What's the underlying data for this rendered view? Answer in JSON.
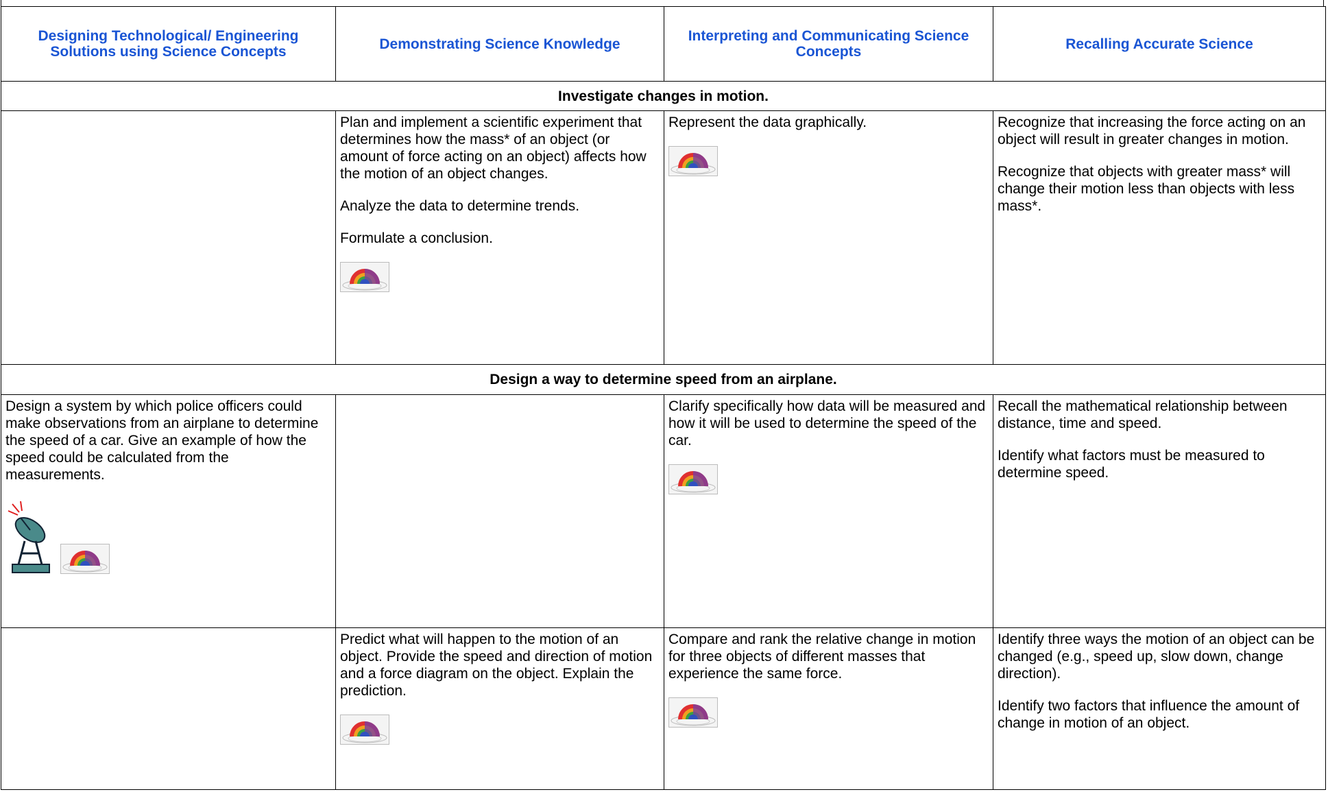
{
  "table": {
    "headers": [
      "Designing Technological/ Engineering Solutions using Science Concepts",
      "Demonstrating Science Knowledge",
      "Interpreting and Communicating Science Concepts",
      "Recalling Accurate Science"
    ],
    "sections": [
      {
        "title": "Investigate changes in motion.",
        "rows": [
          [
            [],
            [
              "Plan and implement a scientific experiment that determines how the mass* of an object (or amount of force acting on an object) affects how the motion of an object changes.",
              "Analyze the data to determine trends.",
              "Formulate a conclusion."
            ],
            [
              "Represent the data graphically."
            ],
            [
              "Recognize that increasing the force acting on an object will result in greater changes in motion.",
              "Recognize that objects with greater mass* will change their motion less than objects with less mass*."
            ]
          ]
        ]
      },
      {
        "title": "Design a way to determine speed from an airplane.",
        "rows": [
          [
            [
              "Design a system by which police officers could make observations from an airplane to determine the speed of a car. Give an example of how the speed could be calculated from the measurements."
            ],
            [],
            [
              "Clarify specifically how data will be measured and how it will be used to determine the speed of the car."
            ],
            [
              "Recall the mathematical relationship between distance, time and speed.",
              "Identify what factors must be measured to determine speed."
            ]
          ],
          [
            [],
            [
              "Predict what will happen to the motion of an object. Provide the speed and direction of motion and a force diagram on the object. Explain the prediction."
            ],
            [
              "Compare and rank the relative change in motion for three objects of different masses that experience the same force."
            ],
            [
              "Identify three ways the motion of an object can be changed (e.g., speed up, slow down, change direction).",
              "Identify two factors that influence the amount of change in motion of an object."
            ]
          ]
        ]
      }
    ]
  }
}
